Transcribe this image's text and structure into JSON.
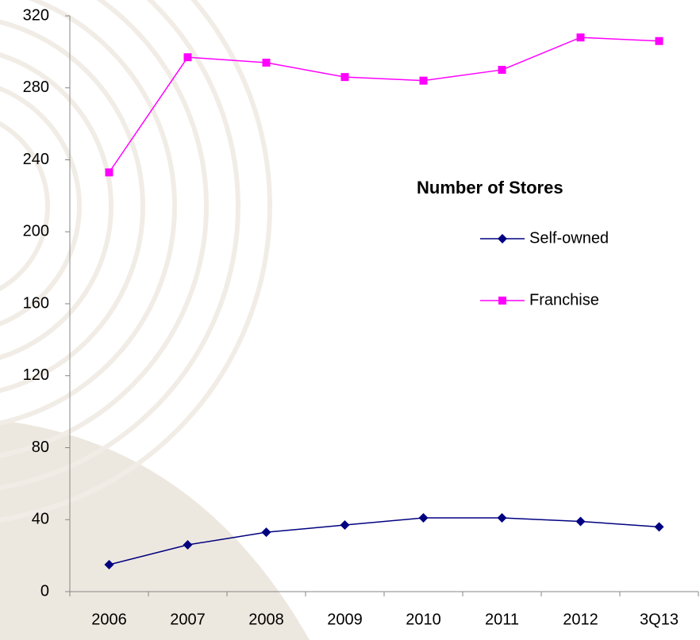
{
  "chart_data": {
    "type": "line",
    "legend_title": "Number of Stores",
    "categories": [
      "2006",
      "2007",
      "2008",
      "2009",
      "2010",
      "2011",
      "2012",
      "3Q13"
    ],
    "series": [
      {
        "name": "Self-owned",
        "color": "#000080",
        "marker": "diamond",
        "values": [
          15,
          26,
          33,
          37,
          41,
          41,
          39,
          36
        ]
      },
      {
        "name": "Franchise",
        "color": "#ff00ff",
        "marker": "square",
        "values": [
          233,
          297,
          294,
          286,
          284,
          290,
          308,
          306
        ]
      }
    ],
    "ylim": [
      0,
      320
    ],
    "yticks": [
      0,
      40,
      80,
      120,
      160,
      200,
      240,
      280,
      320
    ],
    "grid": false,
    "legend_position": "right"
  }
}
